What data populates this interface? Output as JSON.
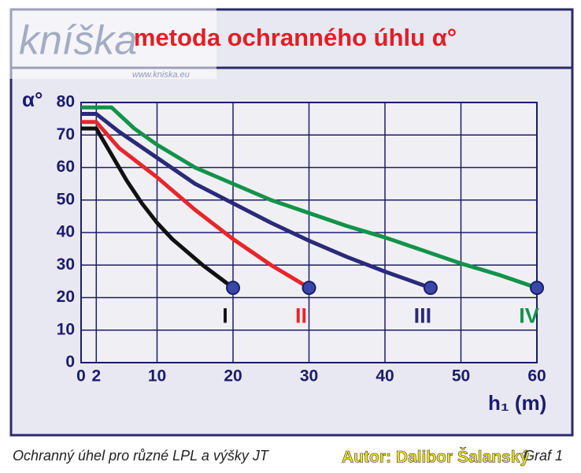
{
  "chart_data": {
    "type": "line",
    "title": "metoda ochranného úhlu α°",
    "y_label": "α°",
    "x_label": "h₁ (m)",
    "caption": "Ochranný úhel pro různé LPL a výšky JT",
    "author": "Autor: Dalibor Šalanský",
    "figure_label": "Graf 1",
    "watermark": "kníška",
    "watermark_url": "www.kniska.eu",
    "xlim": [
      0,
      60
    ],
    "xticks": [
      0,
      2,
      10,
      20,
      30,
      40,
      50,
      60
    ],
    "ylim": [
      0,
      80
    ],
    "yticks": [
      0,
      10,
      20,
      30,
      40,
      50,
      60,
      70,
      80
    ],
    "grid": true,
    "series": [
      {
        "name": "I",
        "color": "#111111",
        "x": [
          0,
          2,
          4,
          6,
          8,
          10,
          12,
          14,
          16,
          18,
          20
        ],
        "values": [
          72,
          72,
          64,
          56,
          49,
          43,
          38,
          34,
          30,
          26.5,
          23
        ]
      },
      {
        "name": "II",
        "color": "#e8262a",
        "x": [
          0,
          2,
          5,
          10,
          15,
          20,
          25,
          30
        ],
        "values": [
          74,
          74,
          66,
          57,
          47,
          38,
          30,
          23
        ]
      },
      {
        "name": "III",
        "color": "#2a2a7a",
        "x": [
          0,
          2,
          5,
          10,
          15,
          20,
          25,
          30,
          35,
          40,
          46
        ],
        "values": [
          76.5,
          76.5,
          71,
          63,
          55,
          49,
          43,
          37.5,
          32.5,
          28,
          23
        ]
      },
      {
        "name": "IV",
        "color": "#12934a",
        "x": [
          0,
          4,
          7,
          10,
          15,
          20,
          25,
          30,
          35,
          40,
          45,
          50,
          55,
          60
        ],
        "values": [
          78.5,
          78.5,
          72,
          67,
          60,
          55,
          50,
          46,
          42,
          38.5,
          34.5,
          30.5,
          27,
          23
        ]
      }
    ]
  }
}
